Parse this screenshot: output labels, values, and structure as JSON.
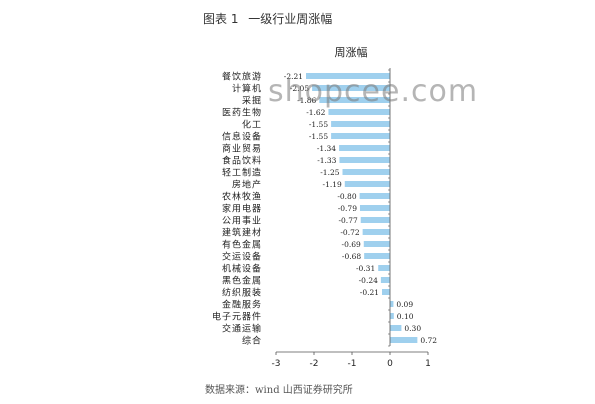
{
  "figure": {
    "label": "图表 1",
    "caption": "一级行业周涨幅"
  },
  "source": "数据来源：wind 山西证券研究所",
  "watermark": "shopcee.com",
  "colors": {
    "bar": "#9fd0ee",
    "axis": "#555555",
    "text": "#222222"
  },
  "chart_data": {
    "type": "bar",
    "orientation": "horizontal",
    "title": "周涨幅",
    "xlabel": "",
    "ylabel": "",
    "xlim": [
      -3,
      1
    ],
    "xticks": [
      "-3",
      "-2",
      "-1",
      "0",
      "1"
    ],
    "grid": false,
    "categories": [
      "餐饮旅游",
      "计算机",
      "采掘",
      "医药生物",
      "化工",
      "信息设备",
      "商业贸易",
      "食品饮料",
      "轻工制造",
      "房地产",
      "农林牧渔",
      "家用电器",
      "公用事业",
      "建筑建材",
      "有色金属",
      "交运设备",
      "机械设备",
      "黑色金属",
      "纺织服装",
      "金融服务",
      "电子元器件",
      "交通运输",
      "综合"
    ],
    "values": [
      -2.21,
      -2.05,
      -1.86,
      -1.62,
      -1.55,
      -1.55,
      -1.34,
      -1.33,
      -1.25,
      -1.19,
      -0.8,
      -0.79,
      -0.77,
      -0.72,
      -0.69,
      -0.68,
      -0.31,
      -0.24,
      -0.21,
      0.09,
      0.1,
      0.3,
      0.72
    ],
    "value_labels": [
      "-2.21",
      "-2.05",
      "-1.86",
      "-1.62",
      "-1.55",
      "-1.55",
      "-1.34",
      "-1.33",
      "-1.25",
      "-1.19",
      "-0.80",
      "-0.79",
      "-0.77",
      "-0.72",
      "-0.69",
      "-0.68",
      "-0.31",
      "-0.24",
      "-0.21",
      "0.09",
      "0.10",
      "0.30",
      "0.72"
    ]
  }
}
